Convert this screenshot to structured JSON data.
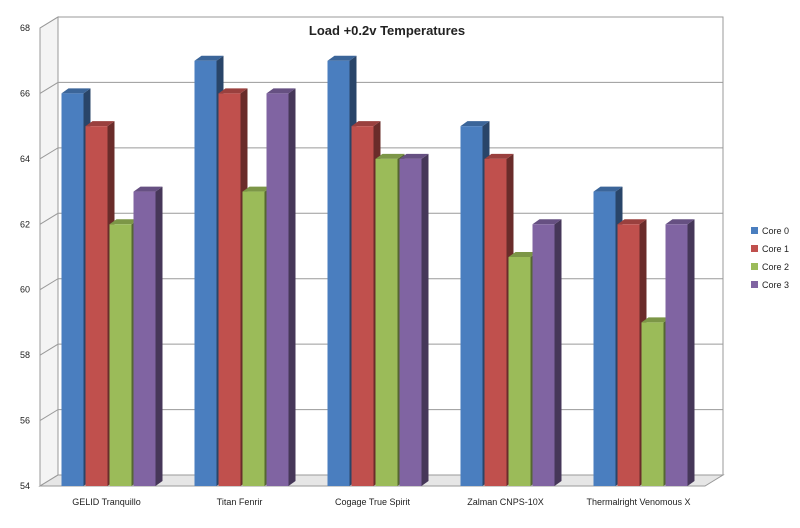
{
  "chart_data": {
    "type": "bar",
    "title": "Load +0.2v Temperatures",
    "xlabel": "",
    "ylabel": "",
    "ylim": [
      54,
      68
    ],
    "yticks": [
      54,
      56,
      58,
      60,
      62,
      64,
      66,
      68
    ],
    "ytick_labels": [
      "54",
      "56",
      "58",
      "60",
      "62",
      "64",
      "66",
      "68"
    ],
    "categories": [
      "GELID Tranquillo",
      "Titan Fenrir",
      "Cogage True Spirit",
      "Zalman CNPS-10X",
      "Thermalright Venomous X"
    ],
    "series": [
      {
        "name": "Core 0",
        "color": "#4a7ebf",
        "values": [
          66,
          67,
          67,
          65,
          63
        ]
      },
      {
        "name": "Core 1",
        "color": "#c0504d",
        "values": [
          65,
          66,
          65,
          64,
          62
        ]
      },
      {
        "name": "Core 2",
        "color": "#9bbb59",
        "values": [
          62,
          63,
          64,
          61,
          59
        ]
      },
      {
        "name": "Core 3",
        "color": "#8064a2",
        "values": [
          63,
          66,
          64,
          62,
          62
        ]
      }
    ],
    "grid": true,
    "legend": "right",
    "style": "3d-clustered-column"
  }
}
